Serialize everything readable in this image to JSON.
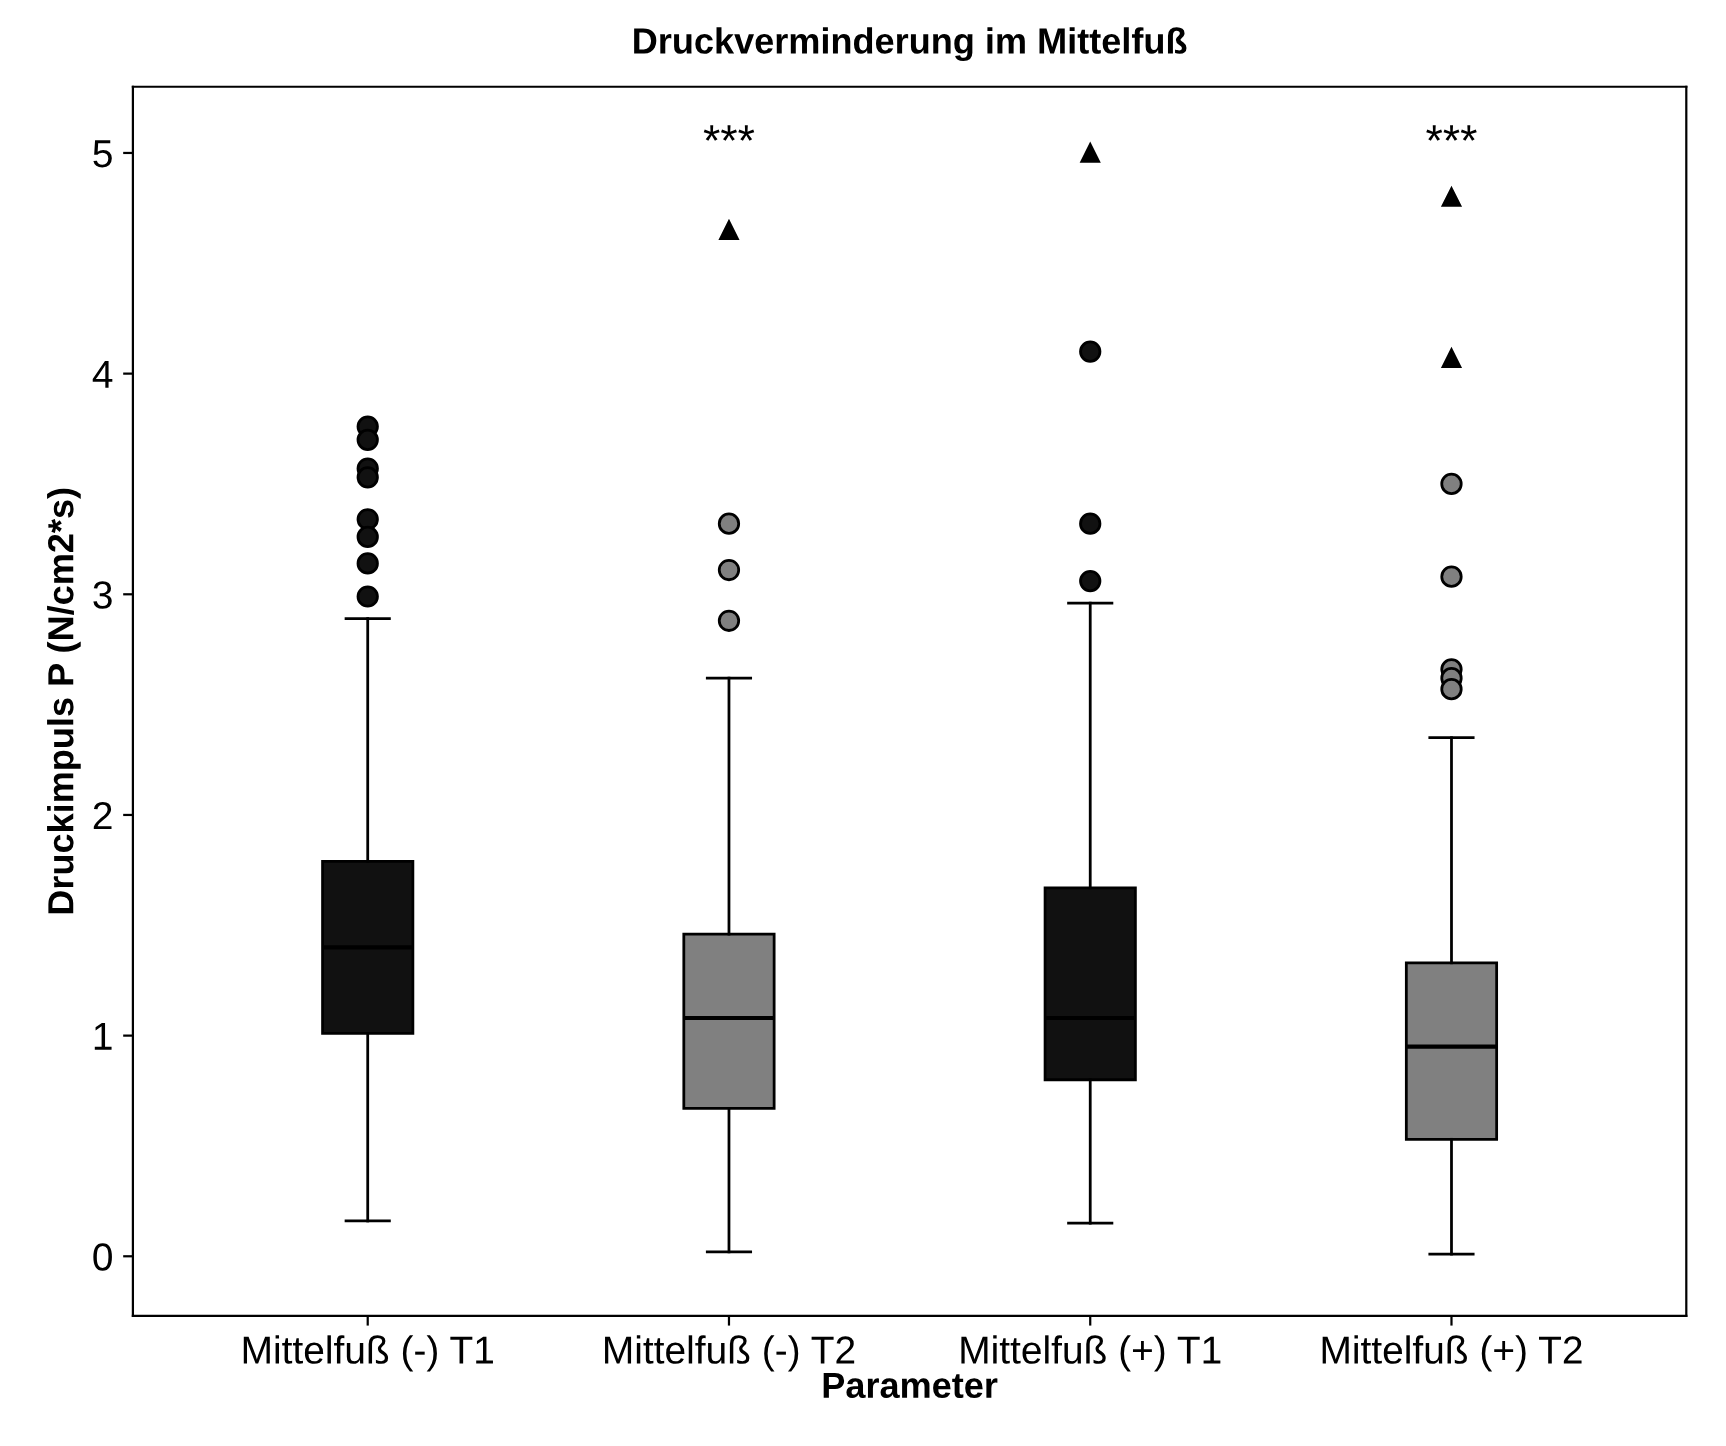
{
  "chart_data": {
    "type": "box",
    "title": "Druckverminderung im Mittelfuß",
    "xlabel": "Parameter",
    "ylabel": "Druckimpuls P (N/cm2*s)",
    "categories": [
      "Mittelfuß (-) T1",
      "Mittelfuß (-) T2",
      "Mittelfuß (+) T1",
      "Mittelfuß (+) T2"
    ],
    "colors": [
      "#111111",
      "#808080",
      "#111111",
      "#808080"
    ],
    "boxes": [
      {
        "low": 0.16,
        "q1": 1.01,
        "median": 1.4,
        "q3": 1.79,
        "high": 2.89,
        "outliers": [
          3.76,
          3.7,
          3.57,
          3.53,
          3.34,
          3.26,
          3.14,
          2.99
        ]
      },
      {
        "low": 0.02,
        "q1": 0.67,
        "median": 1.08,
        "q3": 1.46,
        "high": 2.62,
        "outliers": [
          3.32,
          3.11,
          2.88
        ]
      },
      {
        "low": 0.15,
        "q1": 0.8,
        "median": 1.08,
        "q3": 1.67,
        "high": 2.96,
        "outliers": [
          4.1,
          3.32,
          3.06
        ]
      },
      {
        "low": 0.01,
        "q1": 0.53,
        "median": 0.95,
        "q3": 1.33,
        "high": 2.35,
        "outliers": [
          3.5,
          3.08,
          2.66,
          2.62,
          2.57
        ]
      }
    ],
    "series": [
      {
        "type": "scatter",
        "color": "#000000",
        "marker": "triangle",
        "x": [
          "Mittelfuß (-) T2",
          "Mittelfuß (+) T1",
          "Mittelfuß (+) T2",
          "Mittelfuß (+) T2"
        ],
        "values": [
          4.65,
          5.0,
          4.8,
          4.07
        ]
      }
    ],
    "annotations": [
      "***",
      "***"
    ],
    "ylim": [
      -0.27,
      5.3
    ],
    "yticks": [
      0,
      1,
      2,
      3,
      4,
      5
    ],
    "grid": false,
    "legend": false
  }
}
